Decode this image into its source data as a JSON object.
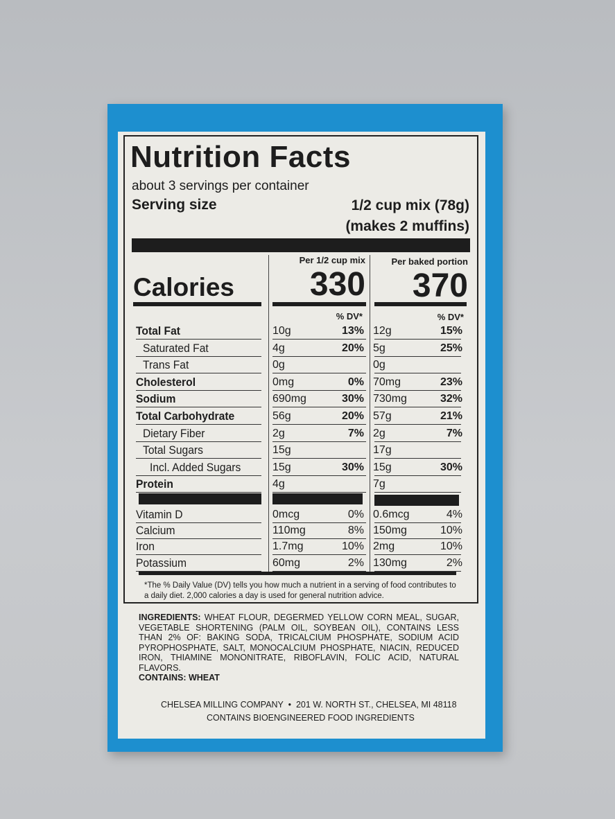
{
  "header": {
    "title": "Nutrition Facts",
    "servings": "about 3 servings per container",
    "serving_size_label": "Serving size",
    "serving_size": "1/2 cup mix (78g)",
    "serving_size_note": "(makes 2 muffins)"
  },
  "columns": [
    "Per 1/2 cup mix",
    "Per baked portion"
  ],
  "calories": {
    "label": "Calories",
    "values": [
      "330",
      "370"
    ]
  },
  "dv_header": "% DV*",
  "nutrients": [
    {
      "name": "Total Fat",
      "bold": true,
      "indent": 0,
      "mix": {
        "amount": "10g",
        "dv": "13%"
      },
      "baked": {
        "amount": "12g",
        "dv": "15%"
      }
    },
    {
      "name": "Saturated Fat",
      "bold": false,
      "indent": 1,
      "mix": {
        "amount": "4g",
        "dv": "20%"
      },
      "baked": {
        "amount": "5g",
        "dv": "25%"
      }
    },
    {
      "name": "Trans Fat",
      "bold": false,
      "indent": 1,
      "mix": {
        "amount": "0g"
      },
      "baked": {
        "amount": "0g"
      }
    },
    {
      "name": "Cholesterol",
      "bold": true,
      "indent": 0,
      "mix": {
        "amount": "0mg",
        "dv": "0%"
      },
      "baked": {
        "amount": "70mg",
        "dv": "23%"
      }
    },
    {
      "name": "Sodium",
      "bold": true,
      "indent": 0,
      "mix": {
        "amount": "690mg",
        "dv": "30%"
      },
      "baked": {
        "amount": "730mg",
        "dv": "32%"
      }
    },
    {
      "name": "Total Carbohydrate",
      "bold": true,
      "indent": 0,
      "mix": {
        "amount": "56g",
        "dv": "20%"
      },
      "baked": {
        "amount": "57g",
        "dv": "21%"
      }
    },
    {
      "name": "Dietary Fiber",
      "bold": false,
      "indent": 1,
      "mix": {
        "amount": "2g",
        "dv": "7%"
      },
      "baked": {
        "amount": "2g",
        "dv": "7%"
      }
    },
    {
      "name": "Total Sugars",
      "bold": false,
      "indent": 1,
      "mix": {
        "amount": "15g"
      },
      "baked": {
        "amount": "17g"
      }
    },
    {
      "name": "Incl. Added Sugars",
      "bold": false,
      "indent": 2,
      "mix": {
        "amount": "15g",
        "dv": "30%"
      },
      "baked": {
        "amount": "15g",
        "dv": "30%"
      }
    },
    {
      "name": "Protein",
      "bold": true,
      "indent": 0,
      "mix": {
        "amount": "4g"
      },
      "baked": {
        "amount": "7g"
      }
    }
  ],
  "vitamins": [
    {
      "name": "Vitamin D",
      "mix": {
        "amount": "0mcg",
        "dv": "0%"
      },
      "baked": {
        "amount": "0.6mcg",
        "dv": "4%"
      }
    },
    {
      "name": "Calcium",
      "mix": {
        "amount": "110mg",
        "dv": "8%"
      },
      "baked": {
        "amount": "150mg",
        "dv": "10%"
      }
    },
    {
      "name": "Iron",
      "mix": {
        "amount": "1.7mg",
        "dv": "10%"
      },
      "baked": {
        "amount": "2mg",
        "dv": "10%"
      }
    },
    {
      "name": "Potassium",
      "mix": {
        "amount": "60mg",
        "dv": "2%"
      },
      "baked": {
        "amount": "130mg",
        "dv": "2%"
      }
    }
  ],
  "footnote": "*The % Daily Value (DV) tells you how much a nutrient in a serving of food contributes to a daily diet. 2,000 calories a day is used for general nutrition advice.",
  "ingredients": {
    "label": "INGREDIENTS:",
    "text": "WHEAT FLOUR, DEGERMED YELLOW CORN MEAL, SUGAR, VEGETABLE SHORTENING (PALM OIL, SOYBEAN OIL), CONTAINS LESS THAN 2% OF: BAKING SODA, TRICALCIUM PHOSPHATE, SODIUM ACID PYROPHOSPHATE, SALT, MONOCALCIUM PHOSPHATE, NIACIN, REDUCED IRON, THIAMINE MONONITRATE, RIBOFLAVIN, FOLIC ACID, NATURAL FLAVORS.",
    "contains": "CONTAINS: WHEAT"
  },
  "company": {
    "name": "CHELSEA MILLING COMPANY",
    "address": "201 W. NORTH ST., CHELSEA, MI 48118",
    "note": "CONTAINS BIOENGINEERED FOOD INGREDIENTS"
  }
}
